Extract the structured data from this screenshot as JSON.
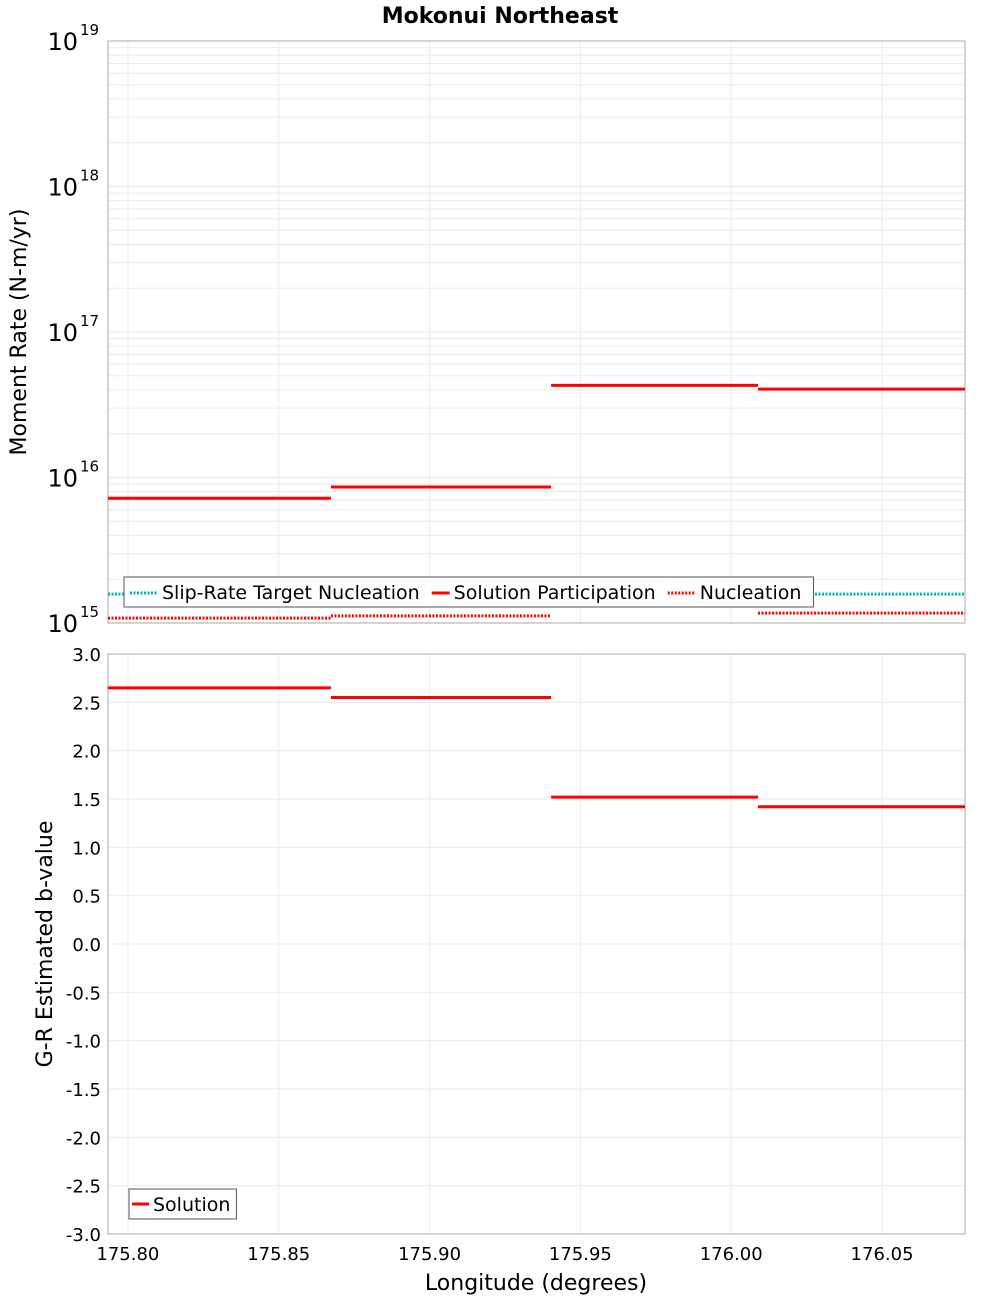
{
  "chart_data": [
    {
      "type": "line",
      "title": "Mokonui Northeast",
      "xlabel": "Longitude (degrees)",
      "ylabel": "Moment Rate (N-m/yr)",
      "yscale": "log",
      "ylim": [
        1000000000000000.0,
        1e+19
      ],
      "xlim": [
        175.7934,
        176.0775
      ],
      "ytick_exponents": [
        "15",
        "16",
        "17",
        "18",
        "19"
      ],
      "ytick_base": "10",
      "grid": true,
      "legend_placement": "bottom-left",
      "colors": {
        "slip_rate": "#00b3b3",
        "solution": "#ff0000",
        "nucleation": "#ff0000"
      },
      "series": [
        {
          "name": "Slip-Rate Target Nucleation",
          "style": "dotted",
          "segments": [
            [
              175.7934,
              176.0775,
              1580000000000000.0
            ]
          ]
        },
        {
          "name": "Solution Participation",
          "style": "solid",
          "segments": [
            [
              175.7934,
              175.8673,
              7200000000000000.0
            ],
            [
              175.8673,
              175.9403,
              8600000000000000.0
            ],
            [
              175.9403,
              176.0089,
              4.3e+16
            ],
            [
              176.0089,
              176.0775,
              4.05e+16
            ]
          ]
        },
        {
          "name": "Nucleation",
          "style": "dotted",
          "segments": [
            [
              175.7934,
              175.8673,
              1080000000000000.0
            ],
            [
              175.8673,
              175.9403,
              1120000000000000.0
            ],
            [
              175.9403,
              176.0089,
              1370000000000000.0
            ],
            [
              176.0089,
              176.0775,
              1170000000000000.0
            ]
          ]
        }
      ]
    },
    {
      "type": "line",
      "xlabel": "Longitude (degrees)",
      "ylabel": "G-R Estimated b-value",
      "ylim": [
        -3.0,
        3.0
      ],
      "xlim": [
        175.7934,
        176.0775
      ],
      "yticks": [
        "3.0",
        "2.5",
        "2.0",
        "1.5",
        "1.0",
        "0.5",
        "0.0",
        "-0.5",
        "-1.0",
        "-1.5",
        "-2.0",
        "-2.5",
        "-3.0"
      ],
      "xticks": [
        "175.80",
        "175.85",
        "175.90",
        "175.95",
        "176.00",
        "176.05"
      ],
      "grid": true,
      "legend_placement": "bottom-left",
      "series": [
        {
          "name": "Solution",
          "style": "solid",
          "segments": [
            [
              175.7934,
              175.8673,
              2.65
            ],
            [
              175.8673,
              175.9403,
              2.55
            ],
            [
              175.9403,
              176.0089,
              1.52
            ],
            [
              176.0089,
              176.0775,
              1.42
            ]
          ]
        }
      ]
    }
  ]
}
